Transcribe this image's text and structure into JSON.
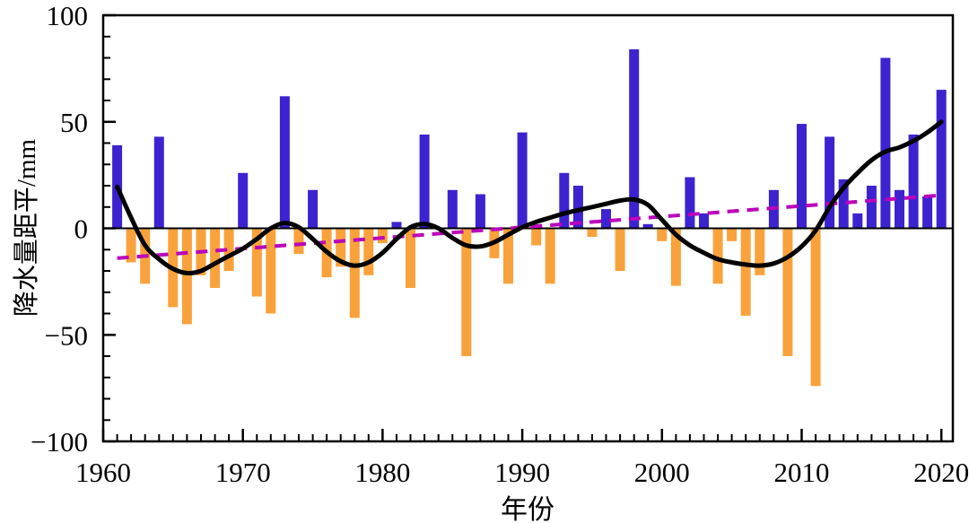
{
  "chart_data": {
    "type": "bar",
    "title": "",
    "xlabel": "年份",
    "ylabel": "降水量距平/mm",
    "xlim": [
      1960,
      2020.8
    ],
    "ylim": [
      -100,
      100
    ],
    "grid": false,
    "legend": false,
    "x_ticks": [
      {
        "value": 1960,
        "label": "1960"
      },
      {
        "value": 1970,
        "label": "1970"
      },
      {
        "value": 1980,
        "label": "1980"
      },
      {
        "value": 1990,
        "label": "1990"
      },
      {
        "value": 2000,
        "label": "2000"
      },
      {
        "value": 2010,
        "label": "2010"
      },
      {
        "value": 2020,
        "label": "2020"
      }
    ],
    "y_ticks": [
      {
        "value": 100,
        "label": "100"
      },
      {
        "value": 50,
        "label": "50"
      },
      {
        "value": 0,
        "label": "0"
      },
      {
        "value": -50,
        "label": "−50"
      },
      {
        "value": -100,
        "label": "−100"
      }
    ],
    "x_minor_tick_step": 1,
    "y_minor_tick_step": 10,
    "years": [
      1961,
      1962,
      1963,
      1964,
      1965,
      1966,
      1967,
      1968,
      1969,
      1970,
      1971,
      1972,
      1973,
      1974,
      1975,
      1976,
      1977,
      1978,
      1979,
      1980,
      1981,
      1982,
      1983,
      1984,
      1985,
      1986,
      1987,
      1988,
      1989,
      1990,
      1991,
      1992,
      1993,
      1994,
      1995,
      1996,
      1997,
      1998,
      1999,
      2000,
      2001,
      2002,
      2003,
      2004,
      2005,
      2006,
      2007,
      2008,
      2009,
      2010,
      2011,
      2012,
      2013,
      2014,
      2015,
      2016,
      2017,
      2018,
      2019,
      2020
    ],
    "series": [
      {
        "name": "annual-precipitation-anomaly-bars",
        "type": "bar",
        "positive_color": "#3c23d0",
        "negative_color": "#f9a23c",
        "values": [
          39,
          -16,
          -26,
          43,
          -37,
          -45,
          -22,
          -28,
          -20,
          26,
          -32,
          -40,
          62,
          -12,
          18,
          -23,
          -18,
          -42,
          -22,
          -7,
          3,
          -28,
          44,
          0,
          18,
          -60,
          16,
          -14,
          -26,
          45,
          -8,
          -26,
          26,
          20,
          -4,
          9,
          -20,
          84,
          2,
          -6,
          -27,
          24,
          7,
          -26,
          -6,
          -41,
          -22,
          18,
          -60,
          49,
          -74,
          43,
          23,
          7,
          20,
          80,
          18,
          44,
          15,
          65
        ]
      },
      {
        "name": "smoothed-anomaly-curve",
        "type": "line",
        "color": "#000000",
        "stroke_width": 5,
        "values": [
          19.5,
          5,
          -8,
          -14.5,
          -19,
          -21,
          -20,
          -16.5,
          -13,
          -9.5,
          -5,
          0,
          2.5,
          0.5,
          -5,
          -11,
          -15.5,
          -17.5,
          -16,
          -11.5,
          -5,
          0.5,
          2,
          0,
          -4.5,
          -8,
          -8.5,
          -6.5,
          -3,
          0.5,
          3,
          5,
          7,
          8.5,
          10,
          11.5,
          13,
          13.5,
          11,
          4,
          -3,
          -8,
          -11.5,
          -14.5,
          -16,
          -17,
          -17.5,
          -16.5,
          -13.5,
          -8.5,
          -1,
          10,
          19,
          26,
          32,
          36,
          38,
          41,
          45,
          50
        ]
      },
      {
        "name": "linear-trend-line",
        "type": "dashed-line",
        "color": "#bb00bb",
        "stroke_width": 4,
        "x": [
          1961,
          2020
        ],
        "values": [
          -14,
          15.5
        ]
      }
    ]
  },
  "figure": {
    "background": "#ffffff",
    "axis_color": "#000000",
    "zero_line_color": "#000000"
  }
}
